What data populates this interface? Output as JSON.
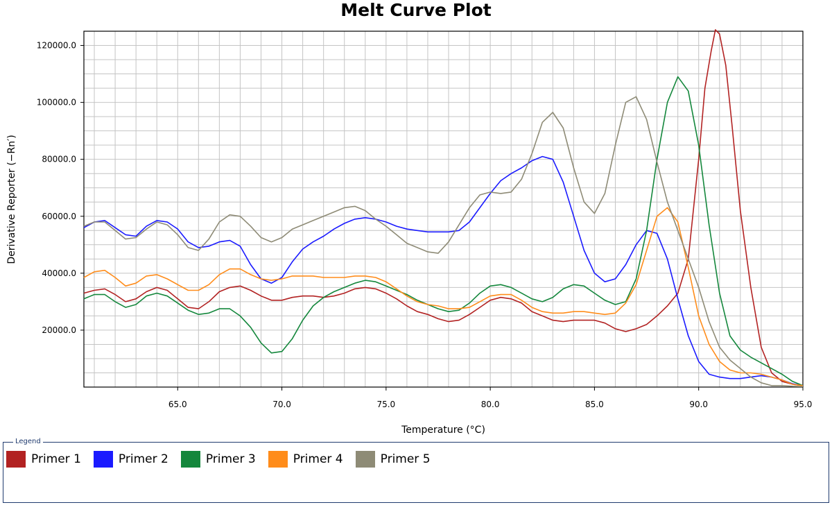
{
  "chart_data": {
    "type": "line",
    "title": "Melt Curve Plot",
    "xlabel": "Temperature (°C)",
    "ylabel": "Derivative Reporter (−Rn′)",
    "xlim": [
      60.5,
      95.0
    ],
    "ylim": [
      0,
      125000
    ],
    "x_ticks": [
      65.0,
      70.0,
      75.0,
      80.0,
      85.0,
      90.0,
      95.0
    ],
    "x_tick_labels": [
      "65.0",
      "70.0",
      "75.0",
      "80.0",
      "85.0",
      "90.0",
      "95.0"
    ],
    "y_ticks": [
      20000,
      40000,
      60000,
      80000,
      100000,
      120000
    ],
    "y_tick_labels": [
      "20000.0",
      "40000.0",
      "60000.0",
      "80000.0",
      "100000.0",
      "120000.0"
    ],
    "grid": true,
    "legend_title": "Legend",
    "legend_position": "bottom",
    "series": [
      {
        "name": "Primer 1",
        "color": "#b22222",
        "x": [
          60.5,
          61.0,
          61.5,
          62.0,
          62.5,
          63.0,
          63.5,
          64.0,
          64.5,
          65.0,
          65.5,
          66.0,
          66.5,
          67.0,
          67.5,
          68.0,
          68.5,
          69.0,
          69.5,
          70.0,
          70.5,
          71.0,
          71.5,
          72.0,
          72.5,
          73.0,
          73.5,
          74.0,
          74.5,
          75.0,
          75.5,
          76.0,
          76.5,
          77.0,
          77.5,
          78.0,
          78.5,
          79.0,
          79.5,
          80.0,
          80.5,
          81.0,
          81.5,
          82.0,
          82.5,
          83.0,
          83.5,
          84.0,
          84.5,
          85.0,
          85.5,
          86.0,
          86.5,
          87.0,
          87.5,
          88.0,
          88.5,
          89.0,
          89.5,
          90.0,
          90.3,
          90.6,
          90.8,
          91.0,
          91.3,
          91.6,
          92.0,
          92.5,
          93.0,
          93.5,
          94.0,
          94.5,
          95.0
        ],
        "y": [
          33000,
          34000,
          34500,
          32500,
          30000,
          31000,
          33500,
          35000,
          34000,
          31000,
          28000,
          27500,
          30000,
          33500,
          35000,
          35500,
          34000,
          32000,
          30500,
          30500,
          31500,
          32000,
          32000,
          31500,
          32000,
          33000,
          34500,
          35000,
          34500,
          33000,
          31000,
          28500,
          26500,
          25500,
          24000,
          23000,
          23500,
          25500,
          28000,
          30500,
          31500,
          31000,
          29500,
          26500,
          25000,
          23500,
          23000,
          23500,
          23500,
          23500,
          22500,
          20500,
          19500,
          20500,
          22000,
          25000,
          28500,
          33000,
          45000,
          80000,
          105000,
          118000,
          125500,
          124000,
          113000,
          92000,
          62000,
          35000,
          14000,
          5000,
          2000,
          1000,
          500
        ]
      },
      {
        "name": "Primer 2",
        "color": "#1a1aff",
        "x": [
          60.5,
          61.0,
          61.5,
          62.0,
          62.5,
          63.0,
          63.5,
          64.0,
          64.5,
          65.0,
          65.5,
          66.0,
          66.5,
          67.0,
          67.5,
          68.0,
          68.5,
          69.0,
          69.5,
          70.0,
          70.5,
          71.0,
          71.5,
          72.0,
          72.5,
          73.0,
          73.5,
          74.0,
          74.5,
          75.0,
          75.5,
          76.0,
          76.5,
          77.0,
          77.5,
          78.0,
          78.5,
          79.0,
          79.5,
          80.0,
          80.5,
          81.0,
          81.5,
          82.0,
          82.5,
          83.0,
          83.5,
          84.0,
          84.5,
          85.0,
          85.5,
          86.0,
          86.5,
          87.0,
          87.5,
          88.0,
          88.5,
          89.0,
          89.5,
          90.0,
          90.5,
          91.0,
          91.5,
          92.0,
          92.5,
          93.0,
          93.5,
          94.0,
          94.5,
          95.0
        ],
        "y": [
          56000,
          58000,
          58500,
          56000,
          53500,
          53000,
          56500,
          58500,
          58000,
          55500,
          51000,
          49000,
          49500,
          51000,
          51500,
          49500,
          43000,
          38000,
          36500,
          38500,
          44000,
          48500,
          51000,
          53000,
          55500,
          57500,
          59000,
          59500,
          59000,
          58000,
          56500,
          55500,
          55000,
          54500,
          54500,
          54500,
          55000,
          58000,
          63000,
          68000,
          72500,
          75000,
          77000,
          79500,
          81000,
          80000,
          72000,
          60000,
          48000,
          40000,
          37000,
          38000,
          43000,
          50000,
          55000,
          54000,
          45000,
          31000,
          18000,
          9000,
          4500,
          3500,
          3000,
          3000,
          3500,
          4000,
          3500,
          2500,
          1200,
          500
        ]
      },
      {
        "name": "Primer 3",
        "color": "#14873c",
        "x": [
          60.5,
          61.0,
          61.5,
          62.0,
          62.5,
          63.0,
          63.5,
          64.0,
          64.5,
          65.0,
          65.5,
          66.0,
          66.5,
          67.0,
          67.5,
          68.0,
          68.5,
          69.0,
          69.5,
          70.0,
          70.5,
          71.0,
          71.5,
          72.0,
          72.5,
          73.0,
          73.5,
          74.0,
          74.5,
          75.0,
          75.5,
          76.0,
          76.5,
          77.0,
          77.5,
          78.0,
          78.5,
          79.0,
          79.5,
          80.0,
          80.5,
          81.0,
          81.5,
          82.0,
          82.5,
          83.0,
          83.5,
          84.0,
          84.5,
          85.0,
          85.5,
          86.0,
          86.5,
          87.0,
          87.5,
          88.0,
          88.5,
          89.0,
          89.5,
          90.0,
          90.5,
          91.0,
          91.5,
          92.0,
          92.5,
          93.0,
          93.5,
          94.0,
          94.5,
          95.0
        ],
        "y": [
          31000,
          32500,
          32500,
          30000,
          28000,
          29000,
          32000,
          33000,
          32000,
          29500,
          27000,
          25500,
          26000,
          27500,
          27500,
          25000,
          21000,
          15500,
          12000,
          12500,
          17000,
          23500,
          28500,
          31500,
          33500,
          35000,
          36500,
          37500,
          37000,
          35500,
          34000,
          32500,
          30500,
          29000,
          27500,
          26500,
          27000,
          29500,
          33000,
          35500,
          36000,
          35000,
          33000,
          31000,
          30000,
          31500,
          34500,
          36000,
          35500,
          33000,
          30500,
          29000,
          30000,
          38000,
          55000,
          80000,
          100000,
          109000,
          104000,
          85000,
          57000,
          33000,
          18000,
          13000,
          10500,
          8500,
          6500,
          4500,
          2000,
          500
        ]
      },
      {
        "name": "Primer 4",
        "color": "#ff8c1a",
        "x": [
          60.5,
          61.0,
          61.5,
          62.0,
          62.5,
          63.0,
          63.5,
          64.0,
          64.5,
          65.0,
          65.5,
          66.0,
          66.5,
          67.0,
          67.5,
          68.0,
          68.5,
          69.0,
          69.5,
          70.0,
          70.5,
          71.0,
          71.5,
          72.0,
          72.5,
          73.0,
          73.5,
          74.0,
          74.5,
          75.0,
          75.5,
          76.0,
          76.5,
          77.0,
          77.5,
          78.0,
          78.5,
          79.0,
          79.5,
          80.0,
          80.5,
          81.0,
          81.5,
          82.0,
          82.5,
          83.0,
          83.5,
          84.0,
          84.5,
          85.0,
          85.5,
          86.0,
          86.5,
          87.0,
          87.5,
          88.0,
          88.5,
          89.0,
          89.5,
          90.0,
          90.5,
          91.0,
          91.5,
          92.0,
          92.5,
          93.0,
          93.5,
          94.0,
          94.5,
          95.0
        ],
        "y": [
          38500,
          40500,
          41000,
          38500,
          35500,
          36500,
          39000,
          39500,
          38000,
          36000,
          34000,
          34000,
          36000,
          39500,
          41500,
          41500,
          39500,
          38000,
          37500,
          38000,
          39000,
          39000,
          39000,
          38500,
          38500,
          38500,
          39000,
          39000,
          38500,
          37000,
          34500,
          32000,
          30000,
          29000,
          28500,
          27500,
          27500,
          28000,
          30000,
          32000,
          32500,
          32500,
          30500,
          28000,
          26500,
          26000,
          26000,
          26500,
          26500,
          26000,
          25500,
          26000,
          29500,
          36000,
          48000,
          60000,
          63000,
          58000,
          42000,
          25000,
          15000,
          9000,
          6000,
          5000,
          5000,
          4500,
          3500,
          2500,
          1000,
          500
        ]
      },
      {
        "name": "Primer 5",
        "color": "#8e8b76",
        "x": [
          60.5,
          61.0,
          61.5,
          62.0,
          62.5,
          63.0,
          63.5,
          64.0,
          64.5,
          65.0,
          65.5,
          66.0,
          66.5,
          67.0,
          67.5,
          68.0,
          68.5,
          69.0,
          69.5,
          70.0,
          70.5,
          71.0,
          71.5,
          72.0,
          72.5,
          73.0,
          73.5,
          74.0,
          74.5,
          75.0,
          75.5,
          76.0,
          76.5,
          77.0,
          77.5,
          78.0,
          78.5,
          79.0,
          79.5,
          80.0,
          80.5,
          81.0,
          81.5,
          82.0,
          82.5,
          83.0,
          83.5,
          84.0,
          84.5,
          85.0,
          85.5,
          86.0,
          86.5,
          87.0,
          87.5,
          88.0,
          88.5,
          89.0,
          89.5,
          90.0,
          90.5,
          91.0,
          91.5,
          92.0,
          92.5,
          93.0,
          93.5,
          94.0,
          94.5,
          95.0
        ],
        "y": [
          56500,
          58000,
          58000,
          55000,
          52000,
          52500,
          55500,
          58000,
          57000,
          53500,
          49000,
          48000,
          52000,
          58000,
          60500,
          60000,
          56500,
          52500,
          51000,
          52500,
          55500,
          57000,
          58500,
          60000,
          61500,
          63000,
          63500,
          62000,
          59000,
          56500,
          53500,
          50500,
          49000,
          47500,
          47000,
          51000,
          57000,
          63000,
          67500,
          68500,
          68000,
          68500,
          73000,
          82000,
          93000,
          96500,
          91000,
          77000,
          65000,
          61000,
          68000,
          85000,
          100000,
          102000,
          94000,
          79000,
          65000,
          55000,
          45000,
          35000,
          23000,
          14000,
          9500,
          6500,
          3500,
          1500,
          500,
          500,
          300,
          200
        ]
      }
    ]
  }
}
